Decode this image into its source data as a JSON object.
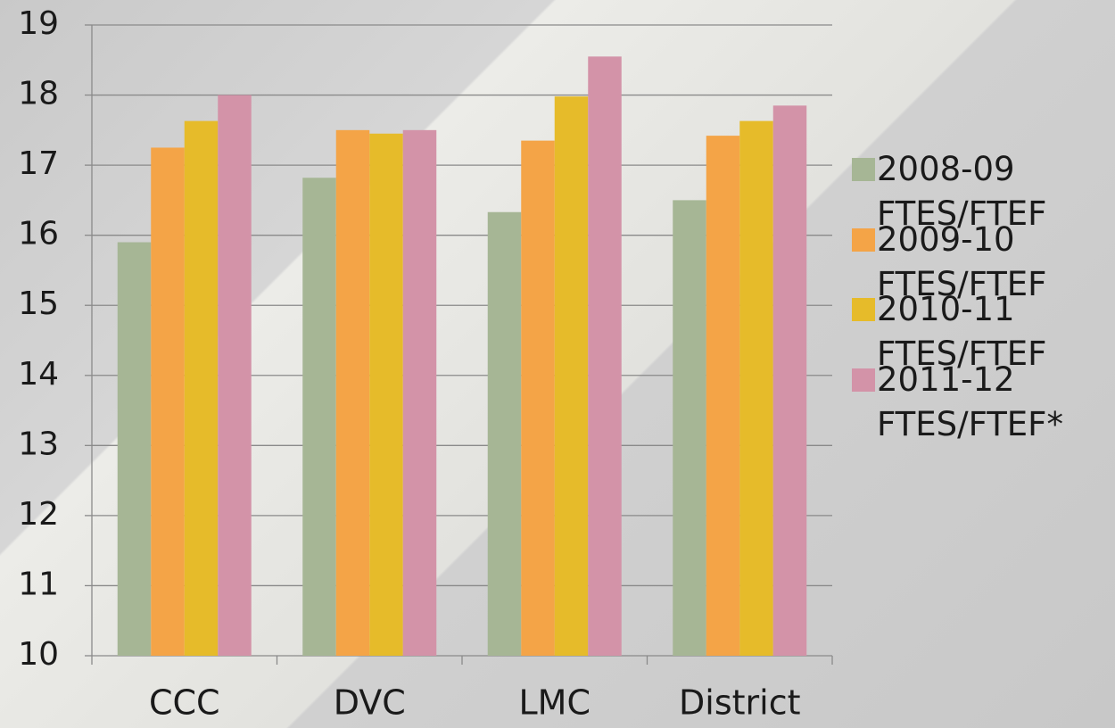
{
  "chart_data": {
    "type": "bar",
    "categories": [
      "CCC",
      "DVC",
      "LMC",
      "District"
    ],
    "series": [
      {
        "name": "2008-09 FTES/FTEF",
        "color": "#a6b695",
        "values": [
          15.9,
          16.82,
          16.33,
          16.5
        ]
      },
      {
        "name": "2009-10 FTES/FTEF",
        "color": "#f4a447",
        "values": [
          17.25,
          17.5,
          17.35,
          17.42
        ]
      },
      {
        "name": "2010-11 FTES/FTEF",
        "color": "#e6bb2a",
        "values": [
          17.63,
          17.45,
          17.98,
          17.63
        ]
      },
      {
        "name": "2011-12 FTES/FTEF*",
        "color": "#d393a8",
        "values": [
          18.0,
          17.5,
          18.55,
          17.85
        ]
      }
    ],
    "ylim": [
      10,
      19
    ],
    "yticks": [
      10,
      11,
      12,
      13,
      14,
      15,
      16,
      17,
      18,
      19
    ],
    "grid": true,
    "legend": "right"
  }
}
